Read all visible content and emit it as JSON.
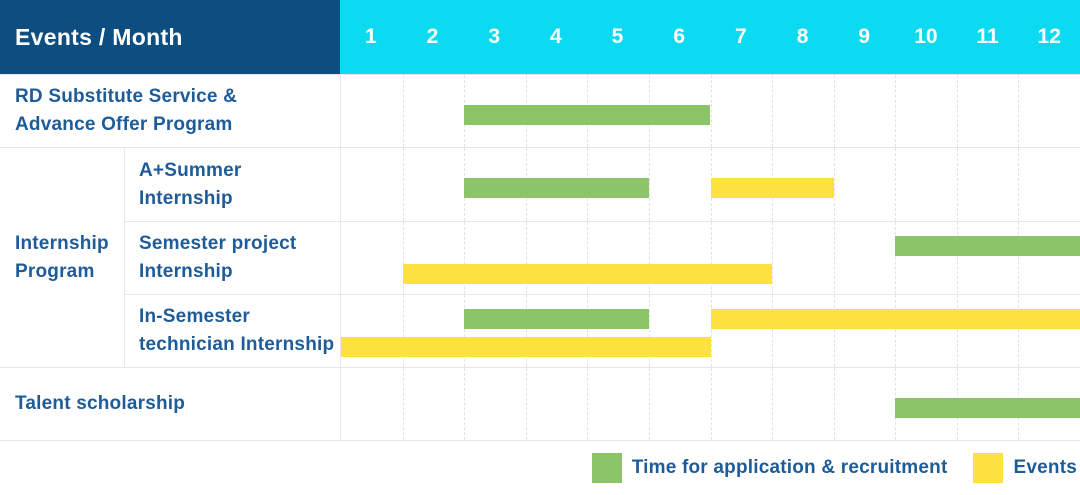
{
  "header": {
    "title": "Events / Month"
  },
  "colors": {
    "header_bg": "#0d4d7f",
    "months_bg": "#0cdaf0",
    "label_text": "#1e5c99",
    "recruitment": "#8cc46a",
    "events": "#fde13f",
    "grid": "#e7e7e7"
  },
  "chart_data": {
    "type": "gantt",
    "xlabel": "Month",
    "x_range": [
      1,
      12
    ],
    "months": [
      "1",
      "2",
      "3",
      "4",
      "5",
      "6",
      "7",
      "8",
      "9",
      "10",
      "11",
      "12"
    ],
    "legend_position": "bottom-right",
    "legend": [
      {
        "key": "recruitment",
        "label": "Time for application & recruitment",
        "color": "#8cc46a"
      },
      {
        "key": "events",
        "label": "Events",
        "color": "#fde13f"
      }
    ],
    "rows": [
      {
        "label": "RD Substitute Service &\nAdvance Offer Program",
        "group": "",
        "bars": [
          {
            "series": "recruitment",
            "start_month": 3,
            "end_month": 6,
            "line": "center"
          }
        ]
      },
      {
        "label": "A+Summer\nInternship",
        "group": "Internship\nProgram",
        "bars": [
          {
            "series": "recruitment",
            "start_month": 3,
            "end_month": 5,
            "line": "center"
          },
          {
            "series": "events",
            "start_month": 7,
            "end_month": 8,
            "line": "center"
          }
        ]
      },
      {
        "label": "Semester project\nInternship",
        "group": "Internship\nProgram",
        "bars": [
          {
            "series": "recruitment",
            "start_month": 10,
            "end_month": 12,
            "line": "top"
          },
          {
            "series": "events",
            "start_month": 2,
            "end_month": 7,
            "line": "bottom"
          }
        ]
      },
      {
        "label": "In-Semester\ntechnician Internship",
        "group": "Internship\nProgram",
        "bars": [
          {
            "series": "recruitment",
            "start_month": 3,
            "end_month": 5,
            "line": "top"
          },
          {
            "series": "events",
            "start_month": 7,
            "end_month": 12,
            "line": "top"
          },
          {
            "series": "events",
            "start_month": 1,
            "end_month": 6,
            "line": "bottom"
          }
        ]
      },
      {
        "label": "Talent scholarship",
        "group": "",
        "bars": [
          {
            "series": "recruitment",
            "start_month": 10,
            "end_month": 12,
            "line": "center"
          }
        ]
      }
    ]
  }
}
